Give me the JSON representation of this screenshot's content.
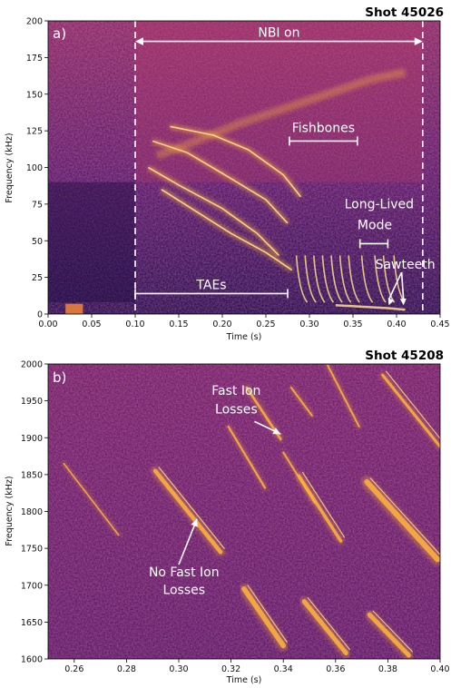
{
  "colors": {
    "bg_dark": "#2a0f55",
    "bg_mid": "#6b1f73",
    "feature": "#ffb43c",
    "feature_bright": "#ffe08a",
    "annotation": "#ffffff"
  },
  "chart_data": [
    {
      "type": "heatmap",
      "colormap": "inferno",
      "panel_label": "a)",
      "shot_label": "Shot 45026",
      "title": "Shot 45026",
      "xlabel": "Time (s)",
      "ylabel": "Frequency (kHz)",
      "xlim": [
        0.0,
        0.45
      ],
      "ylim": [
        0,
        200
      ],
      "xticks": [
        0.0,
        0.05,
        0.1,
        0.15,
        0.2,
        0.25,
        0.3,
        0.35,
        0.4,
        0.45
      ],
      "xtick_labels": [
        "0.00",
        "0.05",
        "0.10",
        "0.15",
        "0.20",
        "0.25",
        "0.30",
        "0.35",
        "0.40",
        "0.45"
      ],
      "yticks": [
        0,
        25,
        50,
        75,
        100,
        125,
        150,
        175,
        200
      ],
      "ytick_labels": [
        "0",
        "25",
        "50",
        "75",
        "100",
        "125",
        "150",
        "175",
        "200"
      ],
      "nbi_window": {
        "start": 0.1,
        "end": 0.43
      },
      "annotations": {
        "nbi": {
          "text": "NBI on",
          "x": [
            0.1,
            0.43
          ],
          "y": 186
        },
        "fishbones": {
          "text": "Fishbones",
          "x": [
            0.277,
            0.355
          ],
          "y": 118
        },
        "long_lived_line1": {
          "text": "Long-Lived",
          "x": 0.38,
          "y": 72
        },
        "long_lived_line2": {
          "text": "Mode",
          "x": 0.375,
          "y": 58
        },
        "long_lived_bracket": {
          "x": [
            0.358,
            0.39
          ],
          "y": 48
        },
        "sawteeth": {
          "text": "Sawteeth",
          "x": 0.41,
          "y": 31,
          "arrow_targets": [
            [
              0.391,
              6
            ],
            [
              0.408,
              6
            ]
          ]
        },
        "taes": {
          "text": "TAEs",
          "x": [
            0.1,
            0.275
          ],
          "y": 14
        }
      },
      "features": {
        "tae_sweeps": [
          {
            "t": [
              0.115,
              0.15,
              0.2,
              0.24,
              0.265
            ],
            "f": [
              100,
              88,
              72,
              55,
              40
            ]
          },
          {
            "t": [
              0.12,
              0.16,
              0.2,
              0.25,
              0.275
            ],
            "f": [
              118,
              110,
              96,
              78,
              62
            ]
          },
          {
            "t": [
              0.13,
              0.17,
              0.21,
              0.25,
              0.28
            ],
            "f": [
              85,
              70,
              55,
              42,
              30
            ]
          },
          {
            "t": [
              0.14,
              0.19,
              0.23,
              0.27,
              0.29
            ],
            "f": [
              128,
              122,
              112,
              95,
              80
            ]
          }
        ],
        "upper_band": {
          "t": [
            0.125,
            0.17,
            0.22,
            0.27,
            0.32,
            0.37,
            0.41
          ],
          "f": [
            108,
            118,
            130,
            140,
            150,
            160,
            165
          ]
        },
        "fishbone_spikes_t": [
          0.285,
          0.295,
          0.305,
          0.315,
          0.325,
          0.335,
          0.345,
          0.36,
          0.375,
          0.385,
          0.397
        ],
        "long_lived_mode": {
          "t": [
            0.33,
            0.36,
            0.39,
            0.41
          ],
          "f": [
            6,
            5,
            4,
            3
          ]
        }
      }
    },
    {
      "type": "heatmap",
      "colormap": "inferno",
      "panel_label": "b)",
      "shot_label": "Shot 45208",
      "title": "Shot 45208",
      "xlabel": "Time (s)",
      "ylabel": "Frequency (kHz)",
      "xlim": [
        0.25,
        0.4
      ],
      "ylim": [
        1600,
        2000
      ],
      "xticks": [
        0.26,
        0.28,
        0.3,
        0.32,
        0.34,
        0.36,
        0.38,
        0.4
      ],
      "xtick_labels": [
        "0.26",
        "0.28",
        "0.30",
        "0.32",
        "0.34",
        "0.36",
        "0.38",
        "0.40"
      ],
      "yticks": [
        1600,
        1650,
        1700,
        1750,
        1800,
        1850,
        1900,
        1950,
        2000
      ],
      "ytick_labels": [
        "1600",
        "1650",
        "1700",
        "1750",
        "1800",
        "1850",
        "1900",
        "1950",
        "2000"
      ],
      "annotations": {
        "fast_line1": {
          "text": "Fast Ion",
          "x": 0.322,
          "y": 1958
        },
        "fast_line2": {
          "text": "Losses",
          "x": 0.322,
          "y": 1933
        },
        "fast_arrow": {
          "from": [
            0.329,
            1922
          ],
          "to": [
            0.339,
            1905
          ]
        },
        "nofast_line1": {
          "text": "No Fast Ion",
          "x": 0.302,
          "y": 1712
        },
        "nofast_line2": {
          "text": "Losses",
          "x": 0.302,
          "y": 1688
        },
        "nofast_arrow": {
          "from": [
            0.3,
            1728
          ],
          "to": [
            0.307,
            1790
          ]
        }
      },
      "features": {
        "chirps": [
          {
            "t0": 0.256,
            "f0": 1865,
            "t1": 0.277,
            "f1": 1768,
            "w": 1.6
          },
          {
            "t0": 0.291,
            "f0": 1855,
            "t1": 0.316,
            "f1": 1745,
            "w": 4.5
          },
          {
            "t0": 0.319,
            "f0": 1915,
            "t1": 0.333,
            "f1": 1832,
            "w": 2.2
          },
          {
            "t0": 0.326,
            "f0": 1968,
            "t1": 0.339,
            "f1": 1898,
            "w": 2.6
          },
          {
            "t0": 0.325,
            "f0": 1695,
            "t1": 0.34,
            "f1": 1618,
            "w": 5.5
          },
          {
            "t0": 0.34,
            "f0": 1880,
            "t1": 0.352,
            "f1": 1812,
            "w": 2.0
          },
          {
            "t0": 0.343,
            "f0": 1968,
            "t1": 0.351,
            "f1": 1930,
            "w": 2.0
          },
          {
            "t0": 0.346,
            "f0": 1848,
            "t1": 0.362,
            "f1": 1760,
            "w": 3.5
          },
          {
            "t0": 0.348,
            "f0": 1678,
            "t1": 0.364,
            "f1": 1608,
            "w": 5.0
          },
          {
            "t0": 0.357,
            "f0": 1998,
            "t1": 0.369,
            "f1": 1915,
            "w": 2.0
          },
          {
            "t0": 0.372,
            "f0": 1840,
            "t1": 0.399,
            "f1": 1735,
            "w": 6.0
          },
          {
            "t0": 0.373,
            "f0": 1660,
            "t1": 0.388,
            "f1": 1605,
            "w": 5.0
          },
          {
            "t0": 0.378,
            "f0": 1985,
            "t1": 0.4,
            "f1": 1888,
            "w": 3.0
          }
        ]
      }
    }
  ]
}
